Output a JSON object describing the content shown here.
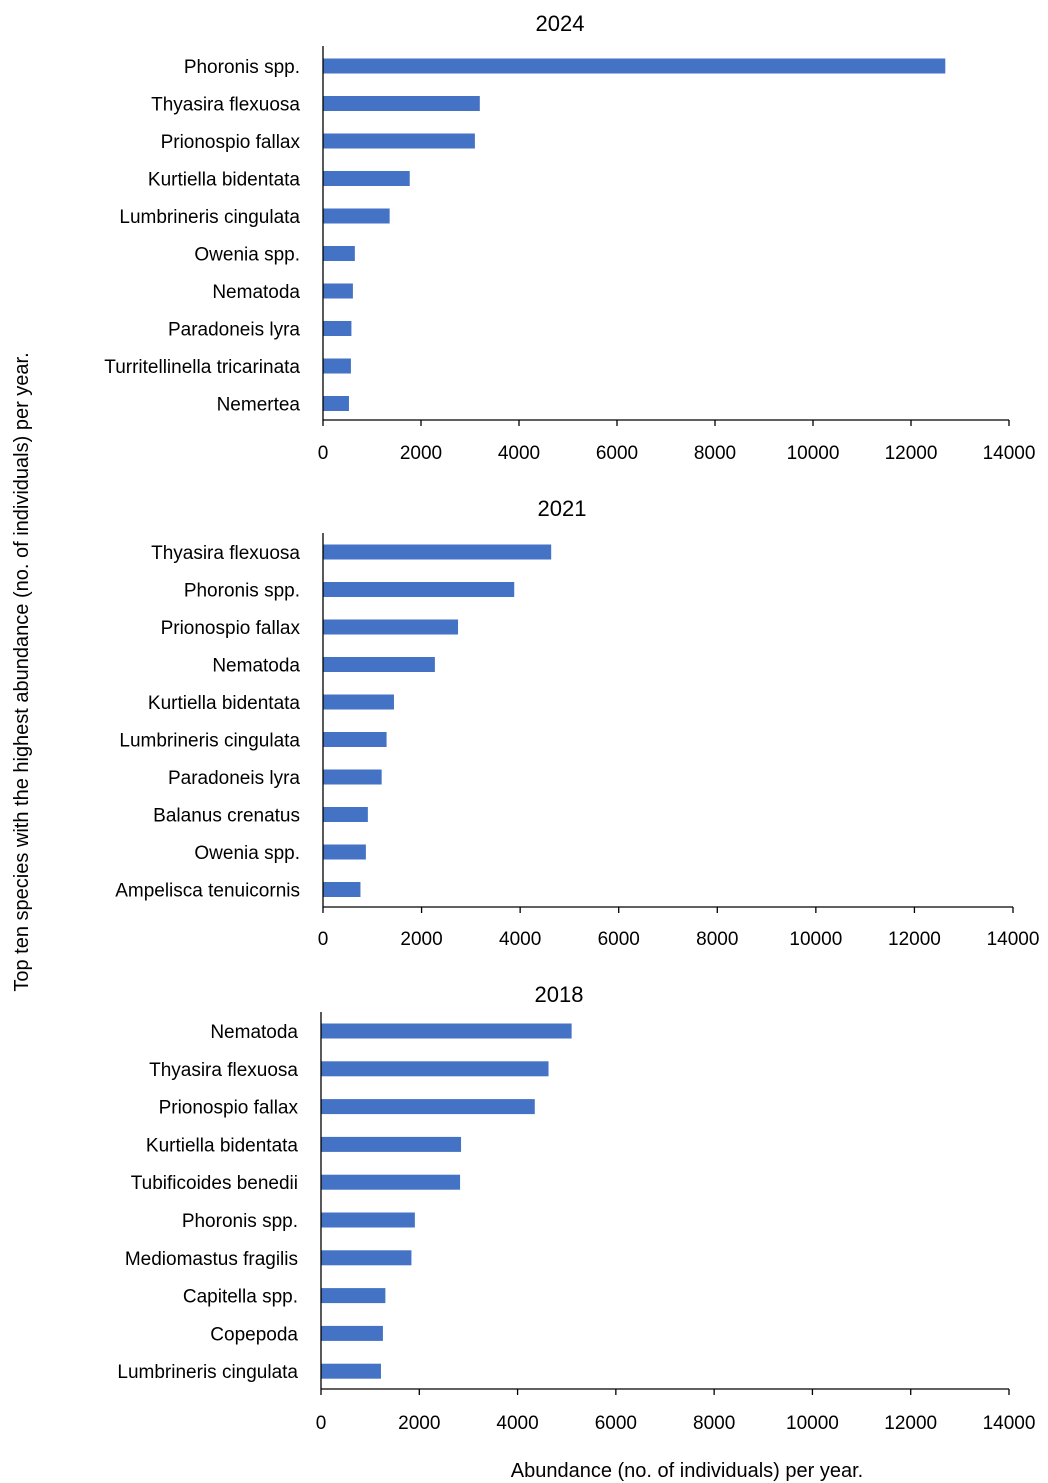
{
  "y_axis_title": "Top ten species with the highest abundance (no. of individuals) per year.",
  "x_axis_title": "Abundance (no. of individuals) per year.",
  "colors": {
    "bar": "#4472C4",
    "axis": "#000000"
  },
  "chart_data": [
    {
      "type": "bar",
      "orientation": "horizontal",
      "title": "2024",
      "xlim": [
        0,
        14000
      ],
      "x_ticks": [
        0,
        2000,
        4000,
        6000,
        8000,
        10000,
        12000,
        14000
      ],
      "grid": false,
      "categories": [
        "Phoronis spp.",
        "Thyasira flexuosa",
        "Prionospio fallax",
        "Kurtiella bidentata",
        "Lumbrineris cingulata",
        "Owenia spp.",
        "Nematoda",
        "Paradoneis lyra",
        "Turritellinella tricarinata",
        "Nemertea"
      ],
      "values": [
        12700,
        3200,
        3100,
        1770,
        1360,
        650,
        610,
        580,
        570,
        530
      ]
    },
    {
      "type": "bar",
      "orientation": "horizontal",
      "title": "2021",
      "xlim": [
        0,
        14000
      ],
      "x_ticks": [
        0,
        2000,
        4000,
        6000,
        8000,
        10000,
        12000,
        14000
      ],
      "grid": false,
      "categories": [
        "Thyasira flexuosa",
        "Phoronis spp.",
        "Prionospio fallax",
        "Nematoda",
        "Kurtiella bidentata",
        "Lumbrineris cingulata",
        "Paradoneis lyra",
        "Balanus crenatus",
        "Owenia spp.",
        "Ampelisca tenuicornis"
      ],
      "values": [
        4630,
        3880,
        2740,
        2270,
        1440,
        1290,
        1190,
        910,
        870,
        760
      ]
    },
    {
      "type": "bar",
      "orientation": "horizontal",
      "title": "2018",
      "xlim": [
        0,
        14000
      ],
      "x_ticks": [
        0,
        2000,
        4000,
        6000,
        8000,
        10000,
        12000,
        14000
      ],
      "grid": false,
      "categories": [
        "Nematoda",
        "Thyasira flexuosa",
        "Prionospio fallax",
        "Kurtiella bidentata",
        "Tubificoides benedii",
        "Phoronis spp.",
        "Mediomastus fragilis",
        "Capitella spp.",
        "Copepoda",
        "Lumbrineris cingulata"
      ],
      "values": [
        5100,
        4630,
        4350,
        2850,
        2830,
        1910,
        1840,
        1310,
        1260,
        1220
      ]
    }
  ]
}
